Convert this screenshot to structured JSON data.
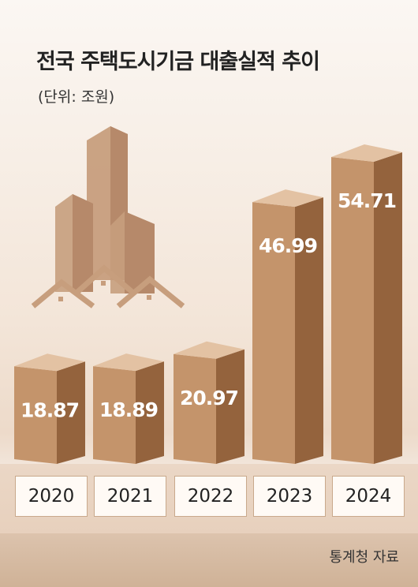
{
  "header": {
    "title": "전국 주택도시기금 대출실적 추이",
    "unit": "(단위: 조원)"
  },
  "chart_data": {
    "type": "bar",
    "title": "전국 주택도시기금 대출실적 추이",
    "unit": "(단위: 조원)",
    "categories": [
      "2020",
      "2021",
      "2022",
      "2023",
      "2024"
    ],
    "values": [
      18.87,
      18.89,
      20.97,
      46.99,
      54.71
    ],
    "labels": [
      "18.87",
      "18.89",
      "20.97",
      "46.99",
      "54.71"
    ],
    "ylim": [
      0,
      56
    ]
  },
  "colors": {
    "bar_front": "#c4946b",
    "bar_side": "#94633d",
    "bar_top": "#e3c2a3",
    "illustration": "#c79e7d"
  },
  "footer": {
    "source": "통계청 자료"
  }
}
